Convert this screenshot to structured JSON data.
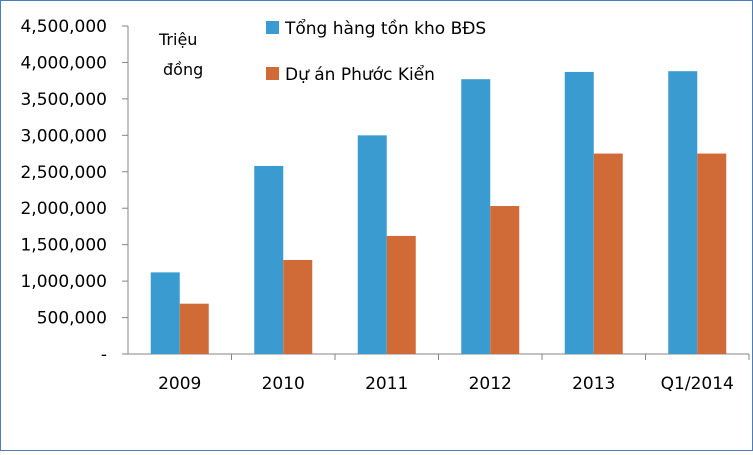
{
  "chart_data": {
    "type": "bar",
    "unit_label_line1": "Triệu",
    "unit_label_line2": "đồng",
    "categories": [
      "2009",
      "2010",
      "2011",
      "2012",
      "2013",
      "Q1/2014"
    ],
    "series": [
      {
        "name": "Tổng hàng tồn kho BĐS",
        "color": "#3a9bd1",
        "values": [
          1120000,
          2580000,
          3000000,
          3770000,
          3870000,
          3880000
        ]
      },
      {
        "name": "Dự án Phước Kiển",
        "color": "#d06a36",
        "values": [
          690000,
          1290000,
          1620000,
          2030000,
          2750000,
          2750000
        ]
      }
    ],
    "yticks": [
      "-",
      "500,000",
      "1,000,000",
      "1,500,000",
      "2,000,000",
      "2,500,000",
      "3,000,000",
      "3,500,000",
      "4,000,000",
      "4,500,000"
    ],
    "ylim": [
      0,
      4500000
    ],
    "grid": false,
    "legend_position": "top"
  }
}
